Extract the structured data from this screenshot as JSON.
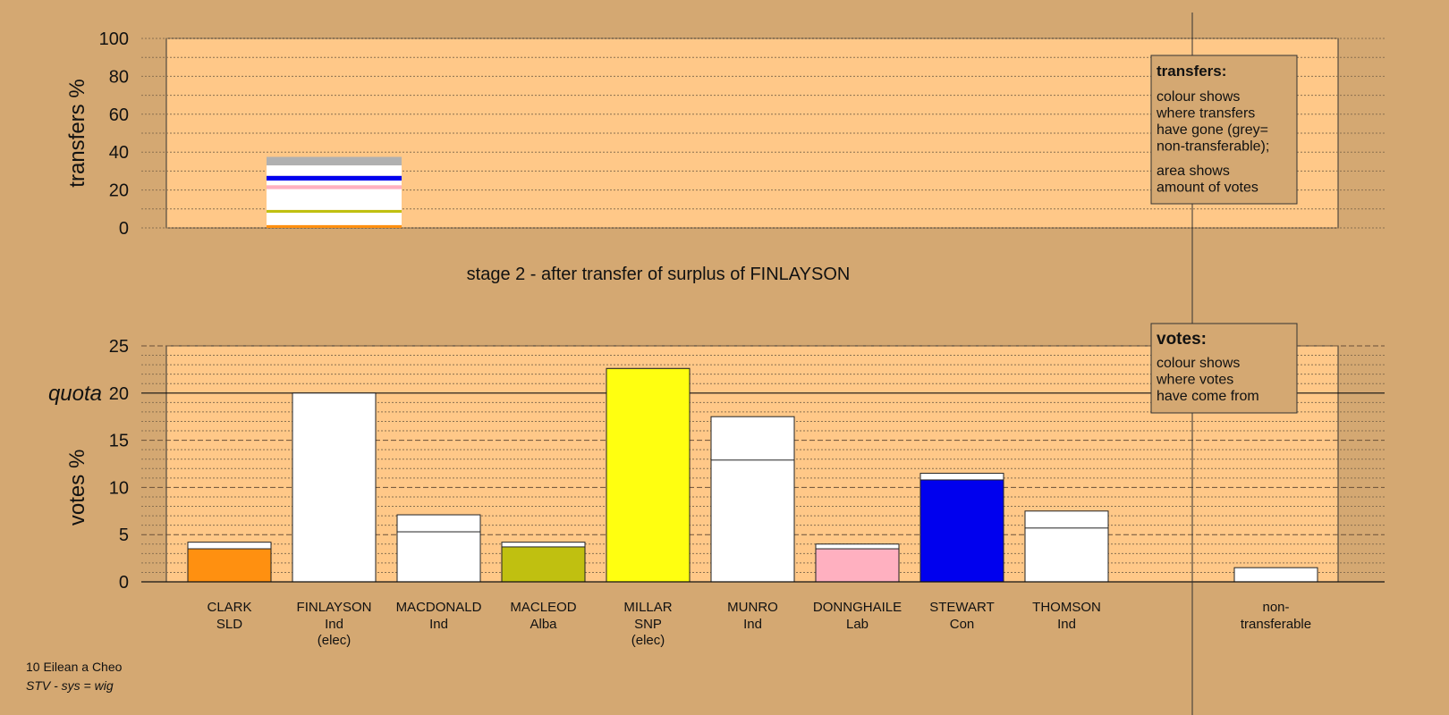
{
  "chart_data": [
    {
      "type": "bar",
      "ylabel": "transfers %",
      "ylim": [
        0,
        100
      ],
      "yticks": [
        0,
        20,
        40,
        60,
        80,
        100
      ],
      "stack": [
        {
          "color": "#ff9010",
          "from": 0,
          "to": 1.5
        },
        {
          "color": "#ffffff",
          "from": 1.5,
          "to": 8
        },
        {
          "color": "#c0c010",
          "from": 8,
          "to": 9.5
        },
        {
          "color": "#ffffff",
          "from": 9.5,
          "to": 20.5
        },
        {
          "color": "#ffb0c0",
          "from": 20.5,
          "to": 22.5
        },
        {
          "color": "#ffffff",
          "from": 22.5,
          "to": 25
        },
        {
          "color": "#0000ee",
          "from": 25,
          "to": 27.5
        },
        {
          "color": "#ffffff",
          "from": 27.5,
          "to": 33
        },
        {
          "color": "#b0b0b0",
          "from": 33,
          "to": 37.5
        }
      ],
      "legend": {
        "title": "transfers:",
        "lines1": [
          "colour shows",
          "where transfers",
          "have gone (grey=",
          "non-transferable);"
        ],
        "lines2": [
          "area shows",
          "amount of votes"
        ]
      }
    },
    {
      "type": "bar",
      "title": "stage 2 - after transfer of surplus of FINLAYSON",
      "ylabel": "votes %",
      "ylim": [
        0,
        25
      ],
      "yticks": [
        0,
        5,
        10,
        15,
        20,
        25
      ],
      "quota": {
        "label": "quota",
        "value": 20
      },
      "candidates": [
        {
          "name": "CLARK",
          "party": "SLD",
          "elected": "",
          "color": "#ff9010",
          "first": 3.5,
          "total": 4.2
        },
        {
          "name": "FINLAYSON",
          "party": "Ind",
          "elected": "(elec)",
          "color": "#ffffff",
          "first": 20.0,
          "total": 20.0
        },
        {
          "name": "MACDONALD",
          "party": "Ind",
          "elected": "",
          "color": "#ffffff",
          "first": 5.3,
          "total": 7.1
        },
        {
          "name": "MACLEOD",
          "party": "Alba",
          "elected": "",
          "color": "#c0c010",
          "first": 3.7,
          "total": 4.2
        },
        {
          "name": "MILLAR",
          "party": "SNP",
          "elected": "(elec)",
          "color": "#ffff10",
          "first": 22.6,
          "total": 22.6
        },
        {
          "name": "MUNRO",
          "party": "Ind",
          "elected": "",
          "color": "#ffffff",
          "first": 12.9,
          "total": 17.5
        },
        {
          "name": "DONNGHAILE",
          "party": "Lab",
          "elected": "",
          "color": "#ffb0c0",
          "first": 3.5,
          "total": 4.0
        },
        {
          "name": "STEWART",
          "party": "Con",
          "elected": "",
          "color": "#0000ee",
          "first": 10.8,
          "total": 11.5
        },
        {
          "name": "THOMSON",
          "party": "Ind",
          "elected": "",
          "color": "#ffffff",
          "first": 5.7,
          "total": 7.5
        }
      ],
      "nontransferable": {
        "line1": "non-",
        "line2": "transferable",
        "value": 1.5
      },
      "legend": {
        "title": "votes:",
        "lines": [
          "colour shows",
          "where votes",
          "have come from"
        ]
      }
    }
  ],
  "colors": {
    "background": "#d4a872",
    "plot": "#ffc888"
  },
  "footer": {
    "ward": "10 Eilean a Cheo",
    "system": "STV - sys = wig"
  }
}
